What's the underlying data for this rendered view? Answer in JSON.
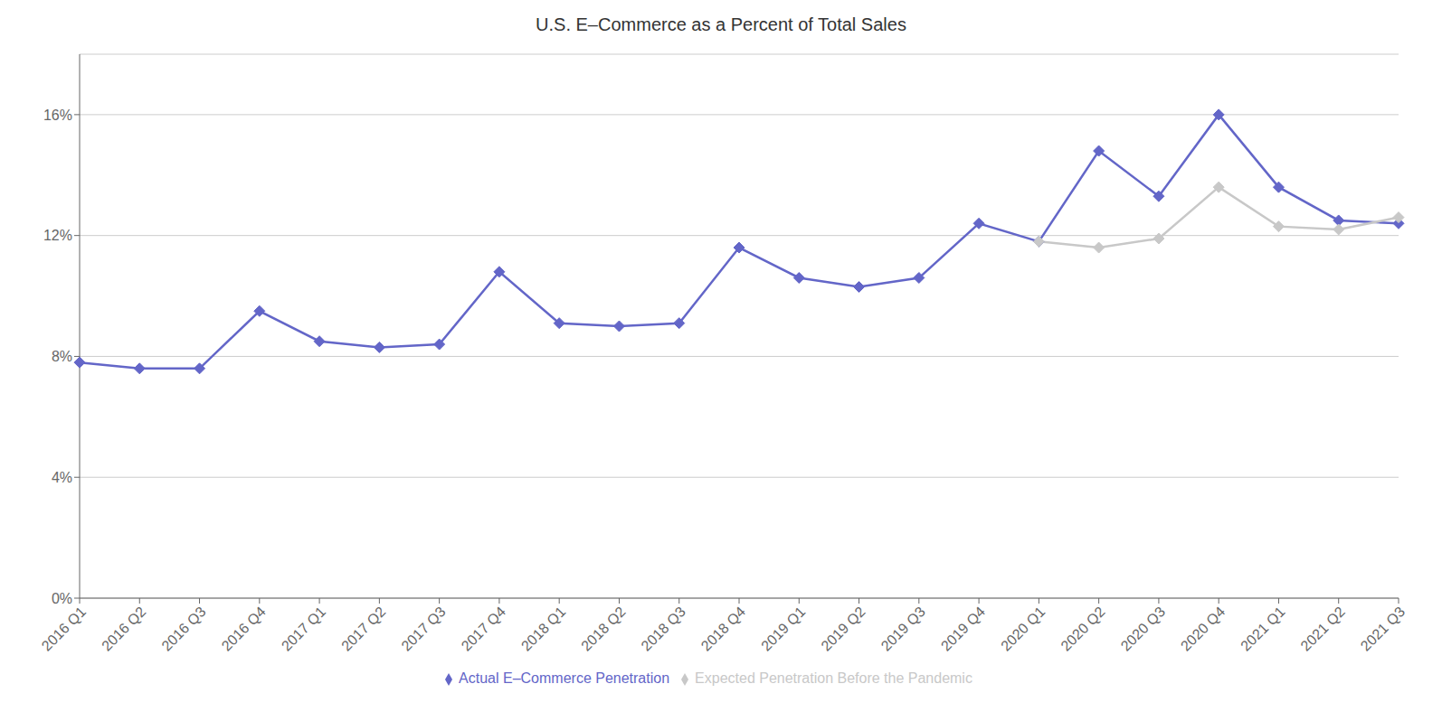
{
  "chart_data": {
    "type": "line",
    "title": "U.S. E–Commerce as a Percent of Total Sales",
    "categories": [
      "2016 Q1",
      "2016 Q2",
      "2016 Q3",
      "2016 Q4",
      "2017 Q1",
      "2017 Q2",
      "2017 Q3",
      "2017 Q4",
      "2018 Q1",
      "2018 Q2",
      "2018 Q3",
      "2018 Q4",
      "2019 Q1",
      "2019 Q2",
      "2019 Q3",
      "2019 Q4",
      "2020 Q1",
      "2020 Q2",
      "2020 Q3",
      "2020 Q4",
      "2021 Q1",
      "2021 Q2",
      "2021 Q3"
    ],
    "series": [
      {
        "name": "Actual E–Commerce Penetration",
        "color": "#6366c8",
        "marker": "diamond",
        "values": [
          7.8,
          7.6,
          7.6,
          9.5,
          8.5,
          8.3,
          8.4,
          10.8,
          9.1,
          9.0,
          9.1,
          11.6,
          10.6,
          10.3,
          10.6,
          12.4,
          11.8,
          14.8,
          13.3,
          16.0,
          13.6,
          12.5,
          12.4
        ]
      },
      {
        "name": "Expected Penetration Before the Pandemic",
        "color": "#c8c8c8",
        "marker": "diamond",
        "values": [
          null,
          null,
          null,
          null,
          null,
          null,
          null,
          null,
          null,
          null,
          null,
          null,
          null,
          null,
          null,
          null,
          11.8,
          11.6,
          11.9,
          13.6,
          12.3,
          12.2,
          12.6
        ]
      }
    ],
    "ylim": [
      0,
      18
    ],
    "yticks": [
      {
        "value": 0,
        "label": "0%"
      },
      {
        "value": 4,
        "label": "4%"
      },
      {
        "value": 8,
        "label": "8%"
      },
      {
        "value": 12,
        "label": "12%"
      },
      {
        "value": 16,
        "label": "16%"
      }
    ],
    "grid": true,
    "legend": "bottom"
  }
}
